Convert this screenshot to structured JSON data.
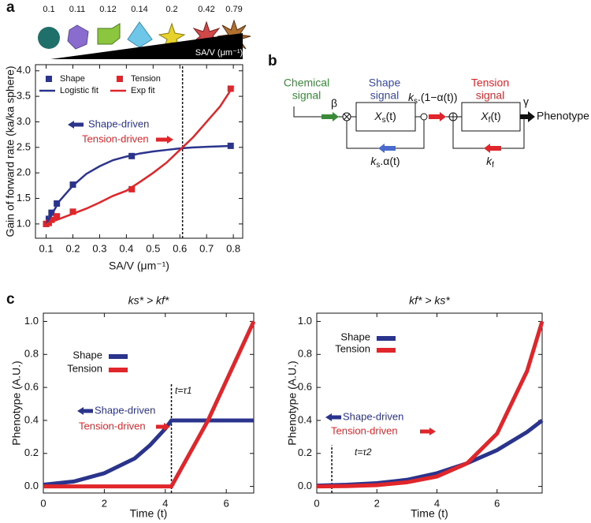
{
  "panel_letters": {
    "a": "a",
    "b": "b",
    "c": "c"
  },
  "shape_strip": {
    "values": [
      "0.1",
      "0.11",
      "0.12",
      "0.14",
      "0.2",
      "0.42",
      "0.79"
    ],
    "label": "SA/V (μm⁻¹)"
  },
  "diagram": {
    "chemical": [
      "Chemical",
      "signal"
    ],
    "shape": [
      "Shape",
      "signal"
    ],
    "tension": [
      "Tension",
      "signal"
    ],
    "beta": "β",
    "gamma": "γ",
    "output": "Phenotype",
    "shape_state": {
      "symbol": "X",
      "sub": "s",
      "arg": "(t)"
    },
    "tension_state": {
      "symbol": "X",
      "sub": "f",
      "arg": "(t)"
    },
    "forward": {
      "symbol": "k",
      "sub": "s",
      "rest": ".(1−α(t))"
    },
    "shape_feedback": {
      "symbol": "k",
      "sub": "s",
      "rest": ".α(t)"
    },
    "tension_feedback": {
      "symbol": "k",
      "sub": "f"
    }
  },
  "chart_data": [
    {
      "type": "scatter",
      "x_label": "SA/V (μm⁻¹)",
      "y_label": "Gain of forward rate (ka/ka sphere)",
      "xlim": [
        0.06,
        0.835
      ],
      "ylim": [
        0.72,
        4.12
      ],
      "xticks": [
        0.1,
        0.2,
        0.3,
        0.4,
        0.5,
        0.6,
        0.7,
        0.8
      ],
      "yticks": [
        {
          "value": 1,
          "label": "1.0"
        },
        1.5,
        {
          "value": 2,
          "label": "2.0"
        },
        2.5,
        {
          "value": 3,
          "label": "3.0"
        },
        3.5,
        {
          "value": 4,
          "label": "4.0"
        }
      ],
      "series": [
        {
          "name": "Shape",
          "color": "#2b348c",
          "marker": "square",
          "x": [
            0.1,
            0.11,
            0.12,
            0.14,
            0.2,
            0.42,
            0.79
          ],
          "values": [
            1.0,
            1.1,
            1.22,
            1.4,
            1.77,
            2.33,
            2.53
          ]
        },
        {
          "name": "Tension",
          "color": "#e0262a",
          "marker": "square",
          "x": [
            0.1,
            0.11,
            0.12,
            0.14,
            0.2,
            0.42,
            0.79
          ],
          "values": [
            1.0,
            1.02,
            1.08,
            1.15,
            1.24,
            1.68,
            3.65
          ]
        },
        {
          "name": "Logistic fit",
          "color": "#2b348c",
          "marker": "line",
          "x": [
            0.1,
            0.15,
            0.2,
            0.25,
            0.3,
            0.35,
            0.4,
            0.45,
            0.5,
            0.55,
            0.6,
            0.65,
            0.7,
            0.75,
            0.8
          ],
          "values": [
            1.0,
            1.45,
            1.75,
            1.98,
            2.13,
            2.25,
            2.32,
            2.38,
            2.42,
            2.45,
            2.48,
            2.5,
            2.51,
            2.52,
            2.53
          ]
        },
        {
          "name": "Exp fit",
          "color": "#e0262a",
          "marker": "line",
          "x": [
            0.1,
            0.15,
            0.2,
            0.25,
            0.3,
            0.35,
            0.4,
            0.45,
            0.5,
            0.55,
            0.6,
            0.65,
            0.7,
            0.75,
            0.8
          ],
          "values": [
            1.0,
            1.1,
            1.2,
            1.3,
            1.42,
            1.55,
            1.65,
            1.82,
            2.0,
            2.2,
            2.45,
            2.7,
            3.0,
            3.3,
            3.7
          ]
        }
      ],
      "vline": {
        "x": 0.61
      },
      "annotations": [
        {
          "text": "Shape-driven",
          "color": "#2b348c"
        },
        {
          "text": "Tension-driven",
          "color": "#e0262a"
        }
      ]
    },
    {
      "type": "line",
      "title": "ks* > kf*",
      "x_label": "Time (t)",
      "y_label": "Phenotype (A.U.)",
      "xlim": [
        0,
        6.9
      ],
      "ylim": [
        -0.04,
        1.05
      ],
      "xticks": [
        0,
        2,
        4,
        6
      ],
      "yticks": [
        {
          "value": 0,
          "label": "0.0"
        },
        0.2,
        0.4,
        0.6,
        0.8,
        {
          "value": 1,
          "label": "1.0"
        }
      ],
      "series": [
        {
          "name": "Shape",
          "color": "#2b348c",
          "x": [
            0,
            1,
            2,
            3,
            3.5,
            4,
            4.2,
            5,
            6,
            6.9
          ],
          "values": [
            0.01,
            0.03,
            0.08,
            0.17,
            0.25,
            0.35,
            0.4,
            0.4,
            0.4,
            0.4
          ]
        },
        {
          "name": "Tension",
          "color": "#e0262a",
          "x": [
            0,
            4.2,
            4.8,
            5.4,
            5.9,
            6.4,
            6.9
          ],
          "values": [
            0,
            0,
            0.2,
            0.4,
            0.6,
            0.8,
            1.0
          ]
        }
      ],
      "vline": {
        "x": 4.2,
        "top": 0.62,
        "label": "t=τ1"
      },
      "annotations": [
        {
          "text": "Shape-driven",
          "color": "#2b348c"
        },
        {
          "text": "Tension-driven",
          "color": "#e0262a"
        }
      ]
    },
    {
      "type": "line",
      "title": "kf* > ks*",
      "x_label": "Time (t)",
      "y_label": "Phenotype (A.U.)",
      "xlim": [
        0,
        7.5
      ],
      "ylim": [
        -0.04,
        1.05
      ],
      "xticks": [
        0,
        2,
        4,
        6
      ],
      "yticks": [
        {
          "value": 0,
          "label": "0.0"
        },
        0.2,
        0.4,
        0.6,
        0.8,
        {
          "value": 1,
          "label": "1.0"
        }
      ],
      "series": [
        {
          "name": "Shape",
          "color": "#2b348c",
          "x": [
            0,
            1,
            2,
            3,
            4,
            5,
            6,
            7,
            7.5
          ],
          "values": [
            0.005,
            0.01,
            0.02,
            0.04,
            0.08,
            0.14,
            0.22,
            0.33,
            0.4
          ]
        },
        {
          "name": "Tension",
          "color": "#e0262a",
          "x": [
            0,
            1,
            2,
            3,
            4,
            5,
            6,
            7,
            7.5
          ],
          "values": [
            0,
            0.002,
            0.008,
            0.025,
            0.06,
            0.14,
            0.32,
            0.7,
            1.0
          ]
        }
      ],
      "vline": {
        "x": 0.5,
        "top": 0.25,
        "label": "t=τ2"
      },
      "annotations": [
        {
          "text": "Shape-driven",
          "color": "#2b348c"
        },
        {
          "text": "Tension-driven",
          "color": "#e0262a"
        }
      ]
    }
  ]
}
